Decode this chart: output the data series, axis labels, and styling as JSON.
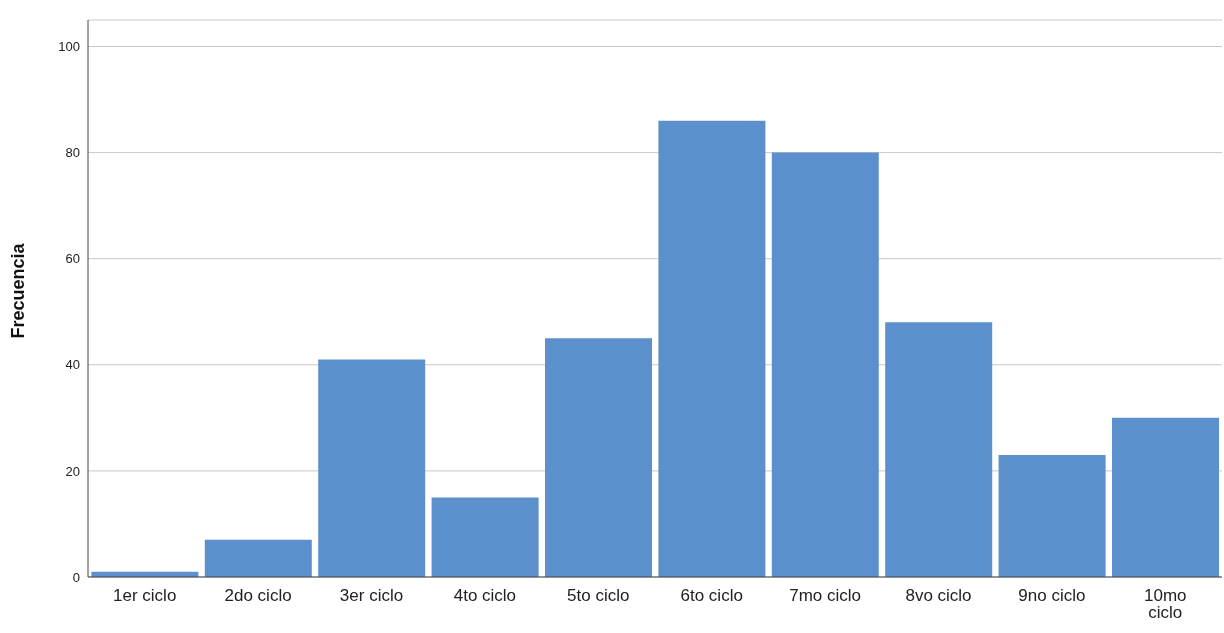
{
  "chart_data": {
    "type": "bar",
    "ylabel": "Frecuencia",
    "categories": [
      "1er ciclo",
      "2do ciclo",
      "3er ciclo",
      "4to ciclo",
      "5to ciclo",
      "6to ciclo",
      "7mo ciclo",
      "8vo ciclo",
      "9no ciclo",
      "10mo ciclo"
    ],
    "values": [
      1,
      7,
      41,
      15,
      45,
      86,
      80,
      48,
      23,
      30
    ],
    "color": "#5b90cc",
    "ylim": [
      0,
      105
    ],
    "yticks": [
      0,
      20,
      40,
      60,
      80,
      100
    ],
    "grid": "y",
    "legend": false
  }
}
